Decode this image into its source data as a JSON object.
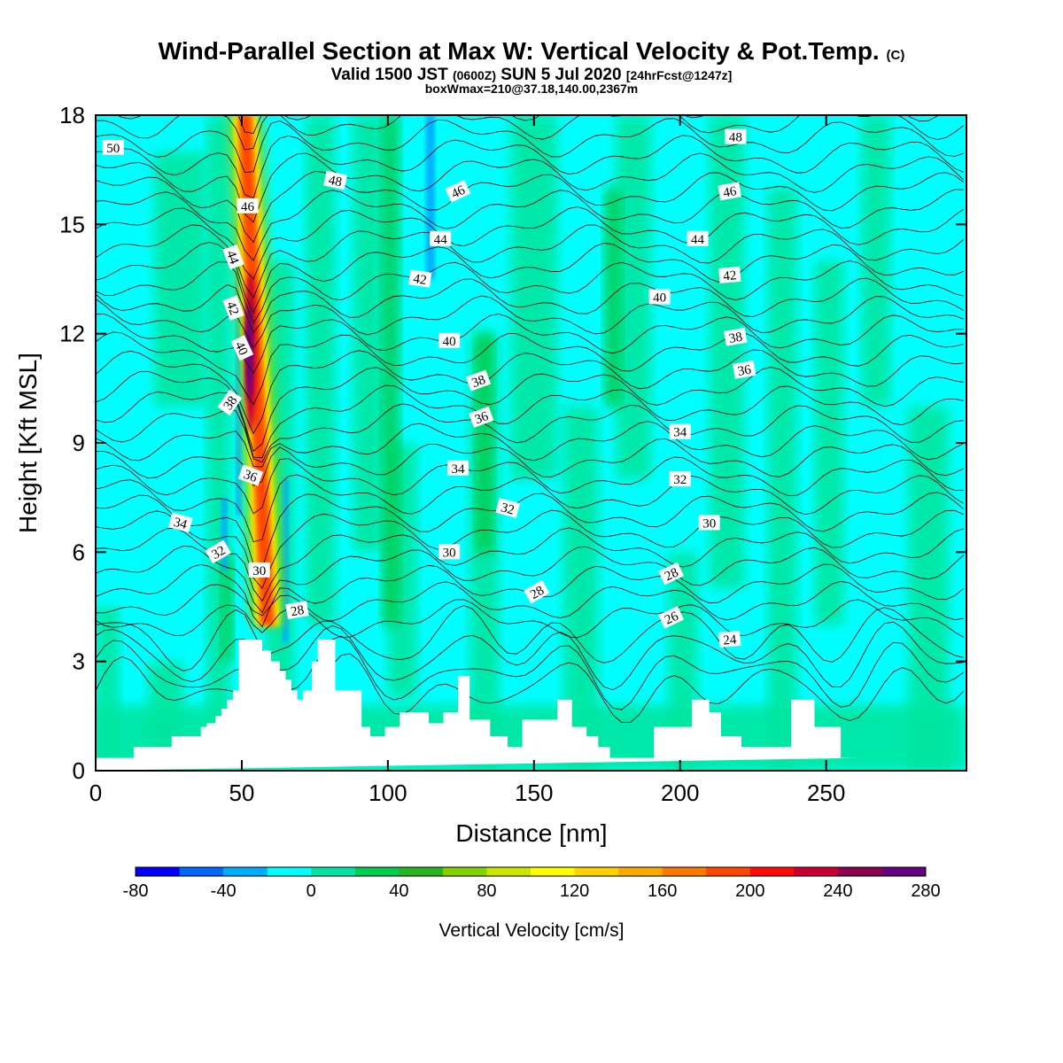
{
  "title": {
    "main": "Wind-Parallel Section at Max W: Vertical Velocity & Pot.Temp.",
    "copyright": "(C)",
    "valid_prefix": "Valid 1500 JST",
    "valid_utc": "(0600Z)",
    "valid_date": "SUN 5 Jul 2020",
    "forecast": "[24hrFcst@1247z]",
    "boxinfo": "boxWmax=210@37.18,140.00,2367m"
  },
  "colors": {
    "colorbar": [
      "#0000ff",
      "#0064ff",
      "#00aaff",
      "#00ffff",
      "#00e6a0",
      "#00cd50",
      "#28b41e",
      "#82d200",
      "#c8e600",
      "#ffff00",
      "#ffd200",
      "#ffaa00",
      "#ff7800",
      "#ff4600",
      "#ff0a0a",
      "#c80032",
      "#8c0050",
      "#640082"
    ],
    "contour": "#000000",
    "terrain": "#ffffff"
  },
  "chart_data": {
    "type": "heatmap",
    "xlabel": "Distance [nm]",
    "ylabel": "Height [Kft MSL]",
    "xlim": [
      0,
      298
    ],
    "ylim": [
      0,
      18
    ],
    "xticks": [
      0,
      50,
      100,
      150,
      200,
      250
    ],
    "yticks": [
      0,
      3,
      6,
      9,
      12,
      15,
      18
    ],
    "colorbar": {
      "title": "Vertical Velocity [cm/s]",
      "levels": [
        -80,
        -60,
        -40,
        -20,
        0,
        20,
        40,
        60,
        80,
        100,
        120,
        140,
        160,
        180,
        200,
        220,
        240,
        260,
        280
      ],
      "tick_labels": [
        "-80",
        "-40",
        "0",
        "40",
        "80",
        "120",
        "160",
        "200",
        "240",
        "280"
      ]
    },
    "updraft_max": {
      "value": 210,
      "location": "37.18,140.00",
      "height": "2367m"
    },
    "theta_contour_labels": [
      {
        "text": "50",
        "x": 6,
        "y": 17.1,
        "angle": 0
      },
      {
        "text": "48",
        "x": 82,
        "y": 16.2,
        "angle": 12
      },
      {
        "text": "48",
        "x": 219,
        "y": 17.4,
        "angle": 0
      },
      {
        "text": "46",
        "x": 52,
        "y": 15.5,
        "angle": 0
      },
      {
        "text": "46",
        "x": 124,
        "y": 15.9,
        "angle": -25
      },
      {
        "text": "46",
        "x": 217,
        "y": 15.9,
        "angle": -10
      },
      {
        "text": "44",
        "x": 47,
        "y": 14.1,
        "angle": 70
      },
      {
        "text": "44",
        "x": 118,
        "y": 14.6,
        "angle": 0
      },
      {
        "text": "44",
        "x": 206,
        "y": 14.6,
        "angle": 0
      },
      {
        "text": "42",
        "x": 47,
        "y": 12.7,
        "angle": 70
      },
      {
        "text": "42",
        "x": 111,
        "y": 13.5,
        "angle": 8
      },
      {
        "text": "42",
        "x": 217,
        "y": 13.6,
        "angle": -5
      },
      {
        "text": "40",
        "x": 50,
        "y": 11.6,
        "angle": 65
      },
      {
        "text": "40",
        "x": 121,
        "y": 11.8,
        "angle": 0
      },
      {
        "text": "40",
        "x": 193,
        "y": 13.0,
        "angle": 0
      },
      {
        "text": "38",
        "x": 46,
        "y": 10.1,
        "angle": -55
      },
      {
        "text": "38",
        "x": 131,
        "y": 10.7,
        "angle": -20
      },
      {
        "text": "38",
        "x": 219,
        "y": 11.9,
        "angle": -10
      },
      {
        "text": "36",
        "x": 53,
        "y": 8.1,
        "angle": 20
      },
      {
        "text": "36",
        "x": 132,
        "y": 9.7,
        "angle": -20
      },
      {
        "text": "36",
        "x": 222,
        "y": 11.0,
        "angle": -10
      },
      {
        "text": "34",
        "x": 29,
        "y": 6.8,
        "angle": 15
      },
      {
        "text": "34",
        "x": 124,
        "y": 8.3,
        "angle": 0
      },
      {
        "text": "34",
        "x": 200,
        "y": 9.3,
        "angle": 0
      },
      {
        "text": "32",
        "x": 42,
        "y": 6.0,
        "angle": -30
      },
      {
        "text": "32",
        "x": 141,
        "y": 7.2,
        "angle": 15
      },
      {
        "text": "32",
        "x": 200,
        "y": 8.0,
        "angle": 0
      },
      {
        "text": "30",
        "x": 56,
        "y": 5.5,
        "angle": 0
      },
      {
        "text": "30",
        "x": 121,
        "y": 6.0,
        "angle": 0
      },
      {
        "text": "30",
        "x": 210,
        "y": 6.8,
        "angle": 0
      },
      {
        "text": "28",
        "x": 69,
        "y": 4.4,
        "angle": -10
      },
      {
        "text": "28",
        "x": 151,
        "y": 4.9,
        "angle": -30
      },
      {
        "text": "28",
        "x": 197,
        "y": 5.4,
        "angle": -25
      },
      {
        "text": "26",
        "x": 197,
        "y": 4.2,
        "angle": -25
      },
      {
        "text": "24",
        "x": 217,
        "y": 3.6,
        "angle": -5
      }
    ],
    "terrain_profile": {
      "x": [
        0,
        13,
        13,
        26,
        26,
        36,
        36,
        38,
        38,
        41,
        41,
        43,
        43,
        45,
        45,
        47,
        47,
        49,
        49,
        57,
        57,
        60,
        60,
        63,
        63,
        65,
        65,
        67,
        67,
        69,
        69,
        71,
        71,
        74,
        74,
        76,
        76,
        82,
        82,
        91,
        91,
        94,
        94,
        99,
        99,
        104,
        104,
        114,
        114,
        119,
        119,
        124,
        124,
        128,
        128,
        135,
        135,
        141,
        141,
        146,
        146,
        158,
        158,
        163,
        163,
        168,
        168,
        172,
        172,
        176,
        176,
        191,
        191,
        204,
        204,
        210,
        210,
        214,
        214,
        221,
        221,
        232,
        232,
        238,
        238,
        246,
        246,
        255,
        255,
        262,
        262,
        298
      ],
      "y": [
        0.35,
        0.35,
        0.65,
        0.65,
        0.95,
        0.95,
        1.2,
        1.2,
        1.3,
        1.3,
        1.5,
        1.5,
        1.7,
        1.7,
        1.95,
        1.95,
        2.2,
        2.2,
        3.6,
        3.6,
        3.3,
        3.3,
        3.0,
        3.0,
        2.75,
        2.75,
        2.5,
        2.5,
        2.2,
        2.2,
        1.95,
        1.95,
        2.2,
        2.2,
        3.0,
        3.0,
        3.6,
        3.6,
        2.2,
        2.2,
        1.2,
        1.2,
        0.95,
        0.95,
        1.2,
        1.2,
        1.6,
        1.6,
        1.3,
        1.3,
        1.6,
        1.6,
        2.6,
        2.6,
        1.4,
        1.4,
        0.95,
        0.95,
        0.65,
        0.65,
        1.4,
        1.4,
        1.95,
        1.95,
        1.2,
        1.2,
        0.95,
        0.95,
        0.65,
        0.65,
        0.35,
        0.35,
        1.2,
        1.2,
        1.95,
        1.95,
        1.6,
        1.6,
        0.95,
        0.95,
        0.65,
        0.65,
        0.65,
        0.65,
        1.95,
        1.95,
        1.2,
        1.2,
        0.35,
        0.35
      ]
    }
  }
}
